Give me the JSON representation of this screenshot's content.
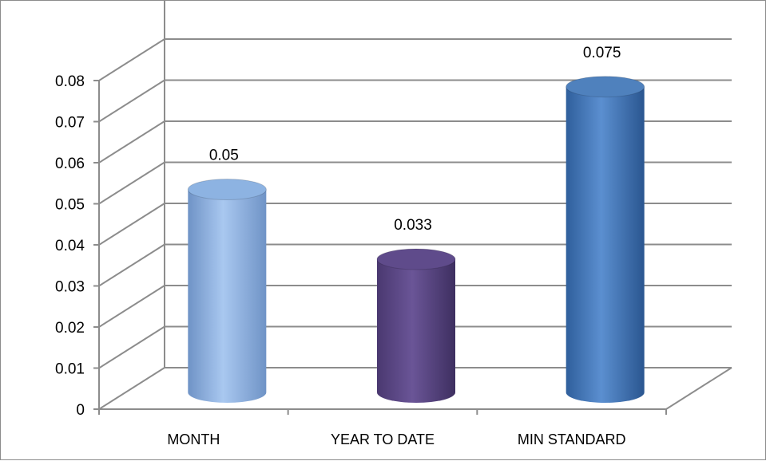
{
  "chart_data": {
    "type": "bar",
    "style": "3d-cylinder",
    "categories": [
      "MONTH",
      "YEAR TO DATE",
      "MIN STANDARD"
    ],
    "values": [
      0.05,
      0.033,
      0.075
    ],
    "data_labels": [
      "0.05",
      "0.033",
      "0.075"
    ],
    "bar_colors": [
      "#8db3e2",
      "#5f4b8b",
      "#4f81bd"
    ],
    "y_ticks": [
      "0",
      "0.01",
      "0.02",
      "0.03",
      "0.04",
      "0.05",
      "0.06",
      "0.07",
      "0.08"
    ],
    "ylim": [
      0,
      0.08
    ],
    "grid": true,
    "legend": "none"
  }
}
